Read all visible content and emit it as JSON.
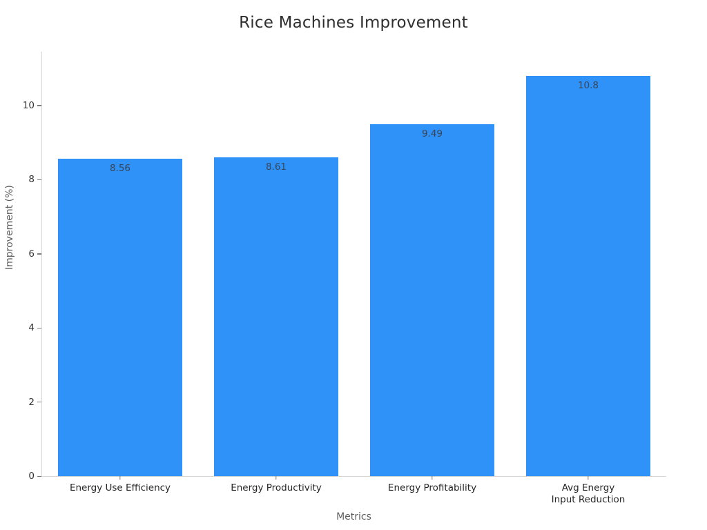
{
  "chart_data": {
    "type": "bar",
    "title": "Rice Machines Improvement",
    "xlabel": "Metrics",
    "ylabel": "Improvement (%)",
    "categories": [
      "Energy Use Efficiency",
      "Energy Productivity",
      "Energy Profitability",
      "Avg Energy\nInput Reduction"
    ],
    "values": [
      8.56,
      8.61,
      9.49,
      10.8
    ],
    "value_labels": [
      "8.56",
      "8.61",
      "9.49",
      "10.8"
    ],
    "yticks": [
      0,
      2,
      4,
      6,
      8,
      10
    ],
    "ytick_labels": [
      "0",
      "2",
      "4",
      "6",
      "8",
      "10"
    ],
    "ylim": [
      0,
      11.45
    ],
    "bar_color": "#2e92f8",
    "bar_relative_width": 0.795,
    "grid": false,
    "legend": "none"
  }
}
